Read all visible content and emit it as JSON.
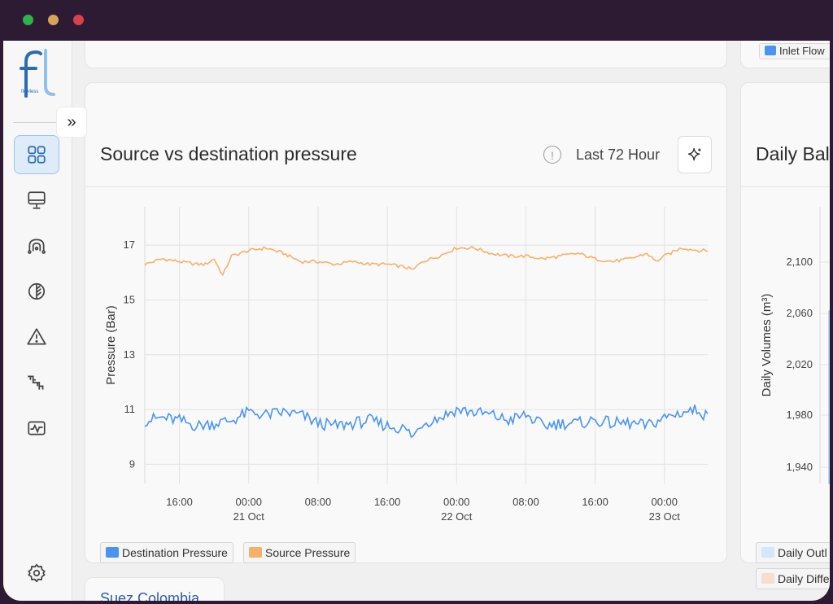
{
  "window": {
    "controls": [
      "green",
      "yellow",
      "red"
    ]
  },
  "brand": {
    "logo_text": "flowless",
    "accent": "#2b6cb0",
    "accent_light": "#8fc0ea"
  },
  "sidebar": {
    "items": [
      {
        "name": "dashboard",
        "icon": "dashboard-grid-icon",
        "active": true
      },
      {
        "name": "monitor",
        "icon": "monitor-icon"
      },
      {
        "name": "network",
        "icon": "network-icon"
      },
      {
        "name": "leaf",
        "icon": "leaf-icon"
      },
      {
        "name": "alerts",
        "icon": "warning-icon"
      },
      {
        "name": "pipes",
        "icon": "pipe-icon"
      },
      {
        "name": "activity",
        "icon": "activity-icon"
      }
    ],
    "settings_icon": "gear-icon",
    "expand_icon": "double-chevron-right-icon",
    "expand_glyph": "»"
  },
  "top_right_legend": "Inlet Flow",
  "main": {
    "title": "Source vs destination pressure",
    "info_glyph": "!",
    "range_label": "Last 72 Hour",
    "legend": [
      {
        "label": "Destination Pressure",
        "color": "#4a94f0"
      },
      {
        "label": "Source Pressure",
        "color": "#f7b06b"
      }
    ]
  },
  "right_card": {
    "title": "Daily Bal",
    "ylabel": "Daily Volumes (m³)",
    "yticks": [
      "2,100",
      "2,060",
      "2,020",
      "1,980",
      "1,940"
    ],
    "legend": [
      "Daily Outl",
      "Daily Diffe"
    ]
  },
  "bottom_card": {
    "label": "Suez Colombia"
  },
  "chart_data": {
    "type": "line",
    "ylabel": "Pressure (Bar)",
    "ylim": [
      8.3,
      18.4
    ],
    "yticks": [
      9,
      11,
      13,
      15,
      17
    ],
    "x_ticks": [
      {
        "t": 16,
        "time": "16:00",
        "date": ""
      },
      {
        "t": 24,
        "time": "00:00",
        "date": "21 Oct"
      },
      {
        "t": 32,
        "time": "08:00",
        "date": ""
      },
      {
        "t": 40,
        "time": "16:00",
        "date": ""
      },
      {
        "t": 48,
        "time": "00:00",
        "date": "22 Oct"
      },
      {
        "t": 56,
        "time": "08:00",
        "date": ""
      },
      {
        "t": 64,
        "time": "16:00",
        "date": ""
      },
      {
        "t": 72,
        "time": "00:00",
        "date": "23 Oct"
      }
    ],
    "x_range": [
      12,
      77
    ],
    "grid": true,
    "series": [
      {
        "name": "Source Pressure",
        "color": "#f7b06b",
        "x": [
          12,
          14,
          16,
          18,
          19,
          20,
          21,
          22,
          24,
          26,
          28,
          30,
          32,
          34,
          36,
          38,
          40,
          42,
          43,
          44,
          46,
          48,
          50,
          52,
          54,
          56,
          58,
          60,
          62,
          64,
          66,
          68,
          70,
          71,
          72,
          74,
          76,
          77
        ],
        "values": [
          16.3,
          16.5,
          16.4,
          16.3,
          16.3,
          16.5,
          15.9,
          16.6,
          16.8,
          16.9,
          16.7,
          16.4,
          16.4,
          16.3,
          16.4,
          16.3,
          16.3,
          16.2,
          16.1,
          16.4,
          16.6,
          16.9,
          16.9,
          16.7,
          16.6,
          16.6,
          16.5,
          16.6,
          16.7,
          16.5,
          16.4,
          16.5,
          16.7,
          16.4,
          16.6,
          16.9,
          16.8,
          16.8
        ]
      },
      {
        "name": "Destination Pressure",
        "color": "#4a94f0",
        "x": [
          12,
          14,
          16,
          18,
          20,
          22,
          24,
          26,
          28,
          30,
          32,
          34,
          36,
          38,
          40,
          42,
          43,
          44,
          46,
          48,
          50,
          52,
          54,
          56,
          58,
          60,
          62,
          64,
          66,
          68,
          70,
          72,
          74,
          76,
          77
        ],
        "values": [
          10.6,
          10.7,
          10.6,
          10.4,
          10.5,
          10.6,
          10.9,
          10.8,
          10.9,
          10.8,
          10.5,
          10.4,
          10.5,
          10.6,
          10.4,
          10.3,
          10.0,
          10.5,
          10.7,
          11.0,
          10.9,
          10.8,
          10.6,
          10.8,
          10.4,
          10.5,
          10.5,
          10.6,
          10.5,
          10.5,
          10.4,
          10.7,
          10.9,
          11.0,
          10.7
        ]
      }
    ]
  }
}
